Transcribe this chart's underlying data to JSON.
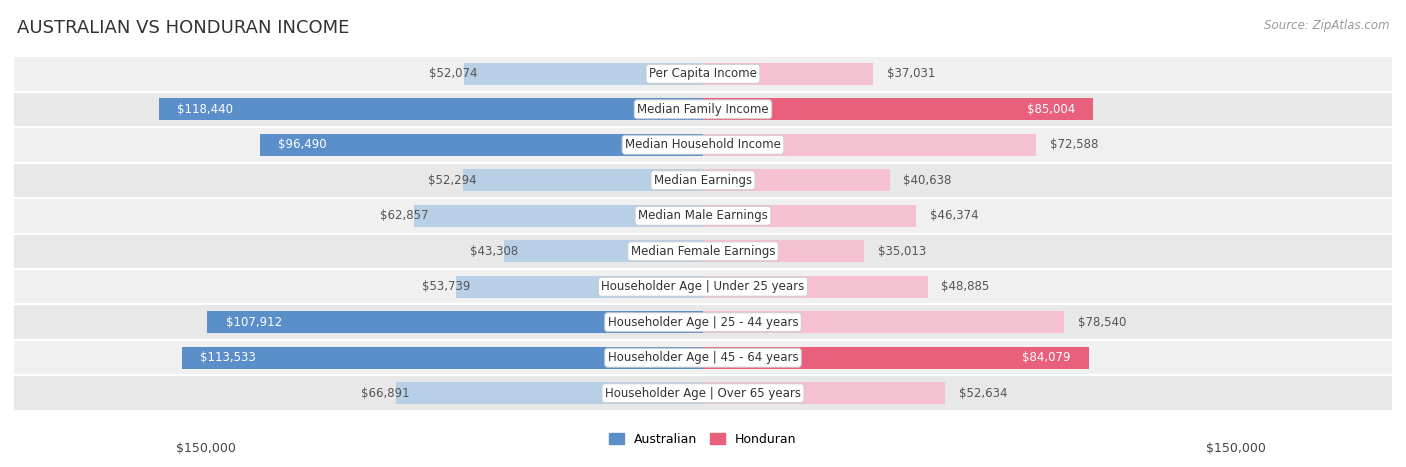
{
  "title": "AUSTRALIAN VS HONDURAN INCOME",
  "source": "Source: ZipAtlas.com",
  "categories": [
    "Per Capita Income",
    "Median Family Income",
    "Median Household Income",
    "Median Earnings",
    "Median Male Earnings",
    "Median Female Earnings",
    "Householder Age | Under 25 years",
    "Householder Age | 25 - 44 years",
    "Householder Age | 45 - 64 years",
    "Householder Age | Over 65 years"
  ],
  "australian_values": [
    52074,
    118440,
    96490,
    52294,
    62857,
    43308,
    53739,
    107912,
    113533,
    66891
  ],
  "honduran_values": [
    37031,
    85004,
    72588,
    40638,
    46374,
    35013,
    48885,
    78540,
    84079,
    52634
  ],
  "australian_labels": [
    "$52,074",
    "$118,440",
    "$96,490",
    "$52,294",
    "$62,857",
    "$43,308",
    "$53,739",
    "$107,912",
    "$113,533",
    "$66,891"
  ],
  "honduran_labels": [
    "$37,031",
    "$85,004",
    "$72,588",
    "$40,638",
    "$46,374",
    "$35,013",
    "$48,885",
    "$78,540",
    "$84,079",
    "$52,634"
  ],
  "max_value": 150000,
  "australian_color_light": "#b8cfe8",
  "australian_color_dark": "#5b8fc9",
  "honduran_color_light": "#f5c0d0",
  "honduran_color_dark": "#e8607c",
  "label_color_outside": "#555555",
  "label_color_inside": "#ffffff",
  "threshold": 80000,
  "background_color": "#ffffff",
  "row_bg_colors": [
    "#f0f0f0",
    "#e8e8e8"
  ],
  "xlabel_left": "$150,000",
  "xlabel_right": "$150,000",
  "legend_australian": "Australian",
  "legend_honduran": "Honduran",
  "title_fontsize": 13,
  "source_fontsize": 8.5,
  "bar_label_fontsize": 8.5,
  "category_fontsize": 8.5,
  "axis_label_fontsize": 9,
  "bar_height": 0.62
}
